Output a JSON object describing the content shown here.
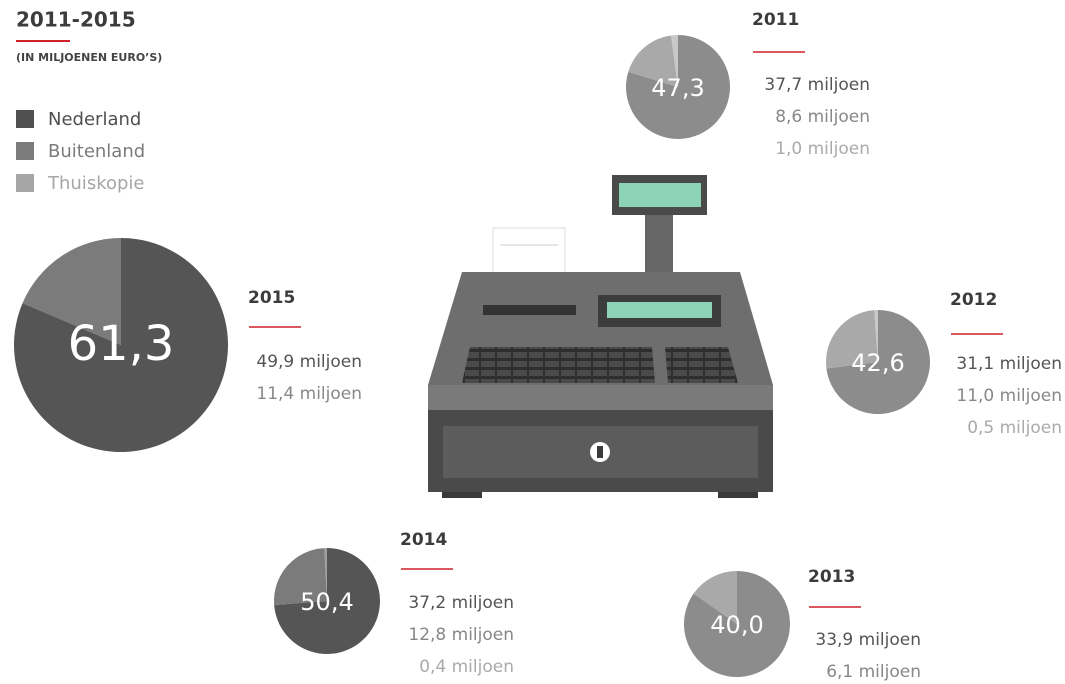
{
  "header": {
    "title": "2011-2015",
    "subtitle": "(IN MILJOENEN EURO’S)"
  },
  "legend": [
    {
      "name": "Nederland",
      "color": "#505050"
    },
    {
      "name": "Buitenland",
      "color": "#7b7b7b"
    },
    {
      "name": "Thuiskopie",
      "color": "#a6a6a6"
    }
  ],
  "chart_data": [
    {
      "type": "pie",
      "title": "2015",
      "center_label": "61,3",
      "values": [
        49.9,
        11.4
      ],
      "value_labels": [
        "49,9 miljoen",
        "11,4 miljoen"
      ],
      "colors": [
        "#555555",
        "#7b7b7b"
      ]
    },
    {
      "type": "pie",
      "title": "2011",
      "center_label": "47,3",
      "values": [
        37.7,
        8.6,
        1.0
      ],
      "value_labels": [
        "37,7  miljoen",
        "8,6  miljoen",
        "1,0  miljoen"
      ],
      "colors": [
        "#8c8c8c",
        "#a9a9a9",
        "#c8c8c8"
      ]
    },
    {
      "type": "pie",
      "title": "2012",
      "center_label": "42,6",
      "values": [
        31.1,
        11.0,
        0.5
      ],
      "value_labels": [
        "31,1 miljoen",
        "11,0 miljoen",
        "0,5 miljoen"
      ],
      "colors": [
        "#8c8c8c",
        "#a9a9a9",
        "#c8c8c8"
      ]
    },
    {
      "type": "pie",
      "title": "2014",
      "center_label": "50,4",
      "values": [
        37.2,
        12.8,
        0.4
      ],
      "value_labels": [
        "37,2 miljoen",
        "12,8 miljoen",
        "0,4 miljoen"
      ],
      "colors": [
        "#555555",
        "#7b7b7b",
        "#a0a0a0"
      ]
    },
    {
      "type": "pie",
      "title": "2013",
      "center_label": "40,0",
      "values": [
        33.9,
        6.1
      ],
      "value_labels": [
        "33,9 miljoen",
        "6,1 miljoen"
      ],
      "colors": [
        "#8c8c8c",
        "#a9a9a9"
      ]
    }
  ]
}
